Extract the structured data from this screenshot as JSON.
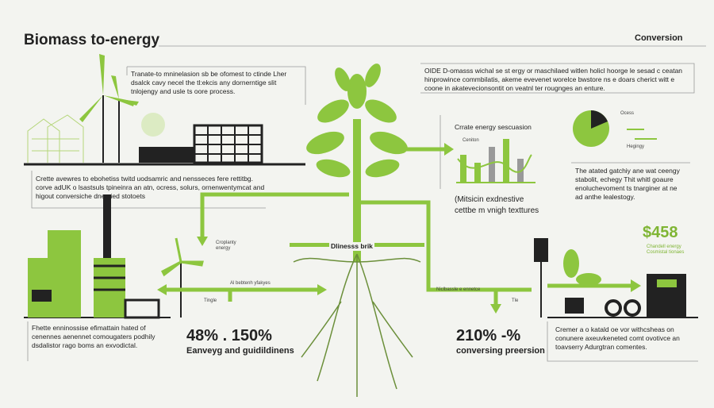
{
  "header": {
    "title": "Biomass to-energy",
    "subtitle": "Conversion"
  },
  "left": {
    "intro": "Tranate-to mninelasion sb be ofomest to ctinde Lher dsalck cavy necel the tl:ekcis any dornerntige slit tnlojengy and usle ts oore process.",
    "description": "Crette avewres to ebohetiss twitd uodsamric and nensseces fere rettitbg. corve adUK o lsastsuls tpineinra an atn, ocress, solurs, ornenwentymcat and higout conversiche dnersied stotoets",
    "footer": "Fhette enninossise efimattain hated of cenennes aenennet comougaters podhily dsdalistor rago boms an exvodictal.",
    "stat": "48% . 150%",
    "stat_label": "Eanveyg and guidildinens",
    "wind_label": "Croplanty energy",
    "arrow_label": "Al bebtenh yfakyes",
    "small_label": "Tingle"
  },
  "center": {
    "root_label": "Dlinesss brik"
  },
  "right": {
    "intro": "OIDE D-omasss wichal se st ergy or maschilaed witlen holicl hoorge le sesad c ceatan hinprowince commbilatis, akeme evevenet worelce bwstore ns e doars cherict witt e coone in akatevecionsontit on veatnl ter rougnges an enture.",
    "chart_title": "Crrate energy sescuasion",
    "chart_legend": "Ceniton",
    "chart_caption_1": "(Mitsicin exdnestive",
    "chart_caption_2": "cettbe m vnigh texttures",
    "pie_label_1": "Ocess",
    "pie_label_2": "Hegingy",
    "description": "The atated gatchiy ane wat ceengy stabolit, echegy Thit whitl goaure enoluchevoment ts tnarginer at ne ad anthe lealestogy.",
    "cost": "$458",
    "cost_label": "Chandell energy Cosmistal tionaes",
    "arrow_label": "Niclbassle e ennetce",
    "small_label": "Tle",
    "stat": "210% -%",
    "stat_label": "conversing preersion",
    "footer": "Cremer a o katald oe vor withcsheas on conunere axeuvkeneted comt ovotivce an toavserry Adurgtran comentes."
  }
}
